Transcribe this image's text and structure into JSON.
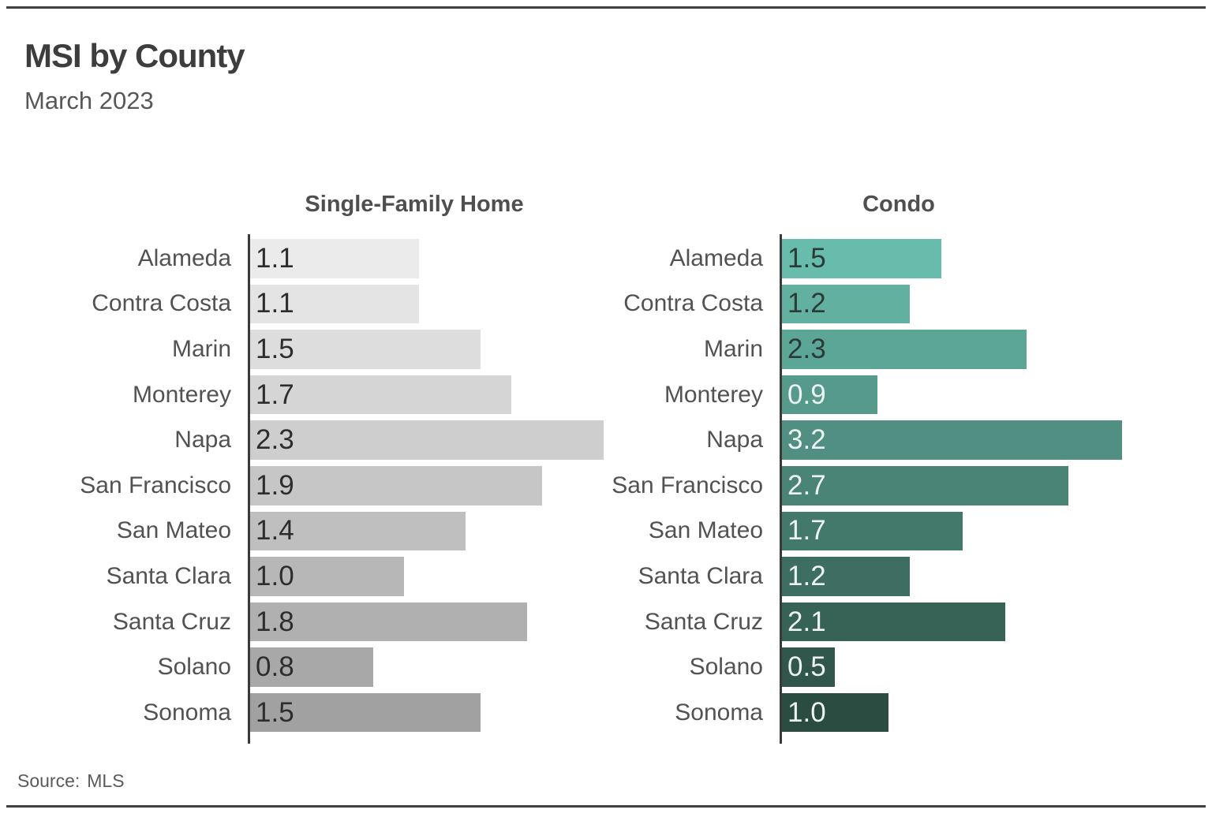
{
  "header": {
    "title": "MSI by County",
    "subtitle": "March 2023"
  },
  "footer": {
    "source_label": "Source:",
    "source_value": "MLS"
  },
  "colors": {
    "background": "#ffffff",
    "rule": "#3f3f3f",
    "axis_line": "#3a3a3a",
    "title_text": "#3d3d3d",
    "category_label_text": "#525252"
  },
  "chart_data": [
    {
      "type": "bar",
      "orientation": "horizontal",
      "title": "Single-Family Home",
      "categories": [
        "Alameda",
        "Contra Costa",
        "Marin",
        "Monterey",
        "Napa",
        "San Francisco",
        "San Mateo",
        "Santa Clara",
        "Santa Cruz",
        "Solano",
        "Sonoma"
      ],
      "values": [
        1.1,
        1.1,
        1.5,
        1.7,
        2.3,
        1.9,
        1.4,
        1.0,
        1.8,
        0.8,
        1.5
      ],
      "value_labels": [
        "1.1",
        "1.1",
        "1.5",
        "1.7",
        "2.3",
        "1.9",
        "1.4",
        "1.0",
        "1.8",
        "0.8",
        "1.5"
      ],
      "xlim": [
        0,
        2.77
      ],
      "grid": false,
      "legend": "none",
      "bar_colors": [
        "#ebebeb",
        "#e4e4e4",
        "#dddddd",
        "#d5d5d5",
        "#cecece",
        "#c6c6c6",
        "#bfbfbf",
        "#b7b7b7",
        "#b0b0b0",
        "#a8a8a8",
        "#a1a1a1"
      ],
      "value_label_colors": [
        "#2d2d2d",
        "#2d2d2d",
        "#2d2d2d",
        "#2d2d2d",
        "#2d2d2d",
        "#2d2d2d",
        "#2d2d2d",
        "#2d2d2d",
        "#2d2d2d",
        "#2d2d2d",
        "#2d2d2d"
      ]
    },
    {
      "type": "bar",
      "orientation": "horizontal",
      "title": "Condo",
      "categories": [
        "Alameda",
        "Contra Costa",
        "Marin",
        "Monterey",
        "Napa",
        "San Francisco",
        "San Mateo",
        "Santa Clara",
        "Santa Cruz",
        "Solano",
        "Sonoma"
      ],
      "values": [
        1.5,
        1.2,
        2.3,
        0.9,
        3.2,
        2.7,
        1.7,
        1.2,
        2.1,
        0.5,
        1.0
      ],
      "value_labels": [
        "1.5",
        "1.2",
        "2.3",
        "0.9",
        "3.2",
        "2.7",
        "1.7",
        "1.2",
        "2.1",
        "0.5",
        "1.0"
      ],
      "xlim": [
        0,
        3.93
      ],
      "grid": false,
      "legend": "none",
      "bar_colors": [
        "#68bcab",
        "#62b1a0",
        "#5ca696",
        "#569a8b",
        "#508f81",
        "#4a8476",
        "#43796b",
        "#3d6e61",
        "#376256",
        "#31574c",
        "#2b4c41"
      ],
      "value_label_colors": [
        "#2b3a36",
        "#2b3a36",
        "#2b3a36",
        "#edf3f1",
        "#edf3f1",
        "#edf3f1",
        "#edf3f1",
        "#edf3f1",
        "#edf3f1",
        "#edf3f1",
        "#edf3f1"
      ]
    }
  ]
}
